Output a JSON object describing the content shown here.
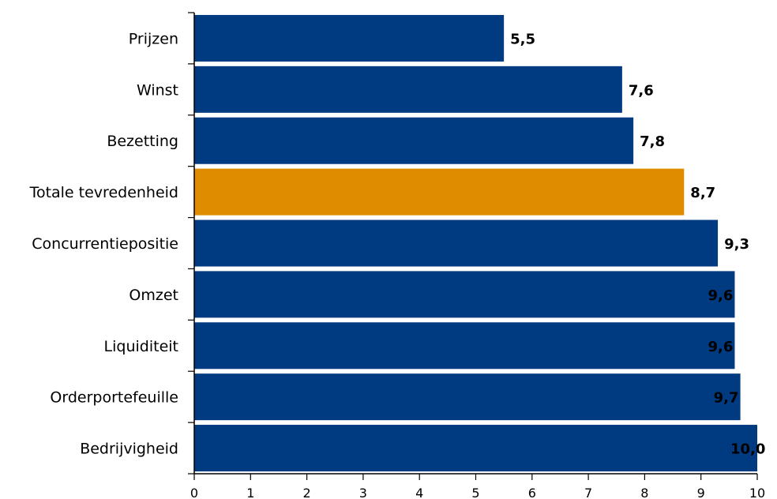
{
  "chart_data": {
    "type": "bar",
    "orientation": "horizontal",
    "title": "",
    "categories": [
      "Prijzen",
      "Winst",
      "Bezetting",
      "Totale tevredenheid",
      "Concurrentiepositie",
      "Omzet",
      "Liquiditeit",
      "Orderportefeuille",
      "Bedrijvigheid"
    ],
    "values": [
      5.5,
      7.6,
      7.8,
      8.7,
      9.3,
      9.6,
      9.6,
      9.7,
      10.0
    ],
    "value_labels": [
      "5,5",
      "7,6",
      "7,8",
      "8,7",
      "9,3",
      "9,6",
      "9,6",
      "9,7",
      "10,0"
    ],
    "highlight_category": "Totale tevredenheid",
    "colors": {
      "bar": "#003a80",
      "highlight": "#e08c00",
      "axis": "#000000"
    },
    "xlim": [
      0,
      10
    ],
    "xticks": [
      "0",
      "1",
      "2",
      "3",
      "4",
      "5",
      "6",
      "7",
      "8",
      "9",
      "10"
    ],
    "xlabel": "",
    "ylabel": "",
    "grid": false,
    "legend": "none"
  }
}
